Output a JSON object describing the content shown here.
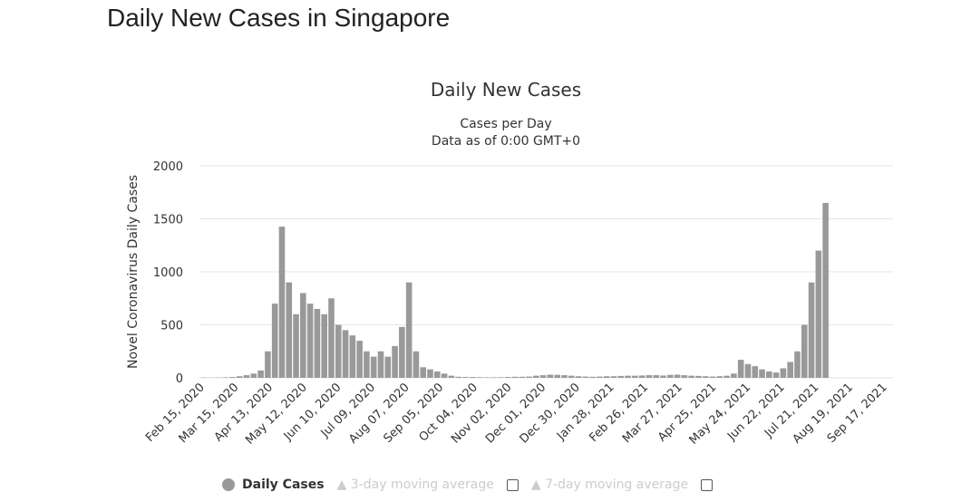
{
  "page_title": "Daily New Cases in Singapore",
  "chart_data": {
    "type": "bar",
    "title": "Daily New Cases",
    "subtitle": [
      "Cases per Day",
      "Data as of 0:00 GMT+0"
    ],
    "ylabel": "Novel Coronavirus Daily Cases",
    "xlabel": "",
    "ylim": [
      0,
      2000
    ],
    "yticks": [
      "0",
      "500",
      "1000",
      "1500",
      "2000"
    ],
    "start_date": "Feb 15, 2020",
    "day_step": 6,
    "xticks": [
      "Feb 15, 2020",
      "Mar 15, 2020",
      "Apr 13, 2020",
      "May 12, 2020",
      "Jun 10, 2020",
      "Jul 09, 2020",
      "Aug 07, 2020",
      "Sep 05, 2020",
      "Oct 04, 2020",
      "Nov 02, 2020",
      "Dec 01, 2020",
      "Dec 30, 2020",
      "Jan 28, 2021",
      "Feb 26, 2021",
      "Mar 27, 2021",
      "Apr 25, 2021",
      "May 24, 2021",
      "Jun 22, 2021",
      "Jul 21, 2021",
      "Aug 19, 2021",
      "Sep 17, 2021"
    ],
    "values": [
      3,
      2,
      3,
      5,
      8,
      15,
      25,
      40,
      70,
      250,
      700,
      1426,
      900,
      600,
      800,
      700,
      650,
      600,
      750,
      500,
      450,
      400,
      350,
      250,
      200,
      250,
      200,
      300,
      480,
      900,
      250,
      100,
      80,
      60,
      40,
      20,
      10,
      8,
      8,
      6,
      5,
      5,
      6,
      8,
      10,
      10,
      12,
      20,
      25,
      30,
      28,
      25,
      20,
      15,
      12,
      10,
      12,
      15,
      15,
      18,
      20,
      20,
      22,
      25,
      25,
      22,
      28,
      30,
      25,
      20,
      18,
      15,
      12,
      15,
      20,
      40,
      170,
      130,
      110,
      80,
      60,
      50,
      90,
      150,
      250,
      500,
      900,
      1200,
      1650
    ],
    "series_color": "#999999",
    "legend": [
      {
        "label": "Daily Cases",
        "active": true
      },
      {
        "label": "3-day moving average",
        "active": false
      },
      {
        "label": "7-day moving average",
        "active": false
      }
    ]
  }
}
